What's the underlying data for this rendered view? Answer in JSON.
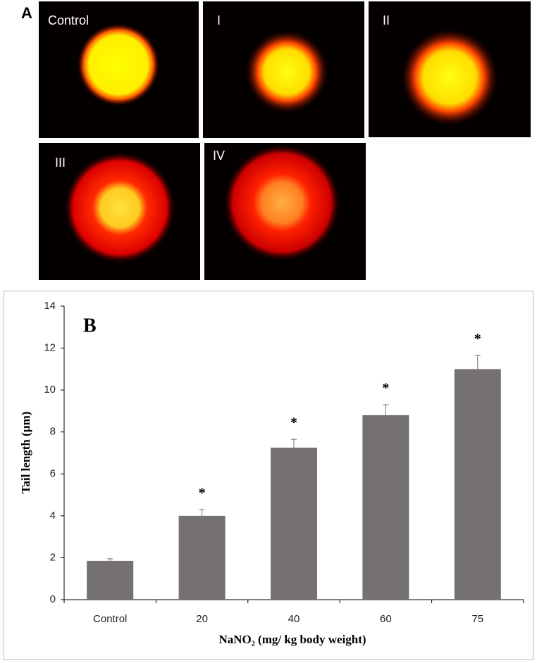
{
  "panel_a": {
    "label": "A",
    "images": [
      {
        "label": "Control"
      },
      {
        "label": "I"
      },
      {
        "label": "II"
      },
      {
        "label": "III"
      },
      {
        "label": "IV"
      }
    ]
  },
  "chart_data": {
    "type": "bar",
    "panel_label": "B",
    "categories": [
      "Control",
      "20",
      "40",
      "60",
      "75"
    ],
    "values": [
      1.85,
      4.0,
      7.25,
      8.8,
      11.0
    ],
    "errors": [
      0.1,
      0.3,
      0.4,
      0.5,
      0.65
    ],
    "annotations": [
      null,
      "*",
      "*",
      "*",
      "*"
    ],
    "color": "#767171",
    "x_label": "NaNO₂ (mg/ kg body weight)",
    "y_label": "Tail length (µm)",
    "ylim": [
      0,
      14
    ],
    "yticks": [
      0,
      2,
      4,
      6,
      8,
      10,
      12,
      14
    ],
    "grid": false
  }
}
